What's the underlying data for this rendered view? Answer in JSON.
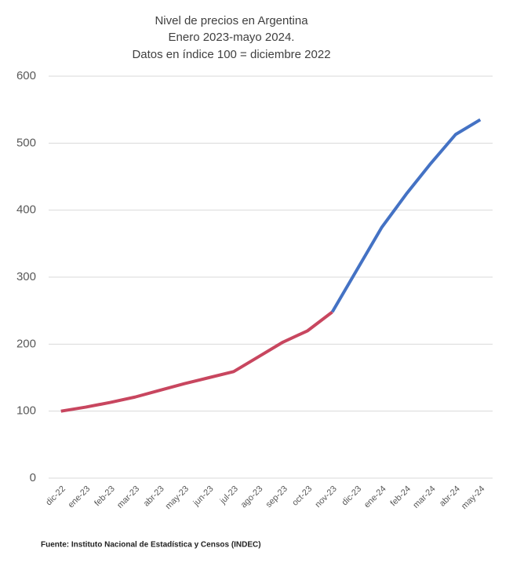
{
  "chart_data": {
    "type": "line",
    "title": [
      "Nivel de precios en Argentina",
      "Enero 2023-mayo 2024.",
      "Datos en índice 100 = diciembre 2022"
    ],
    "categories": [
      "dic-22",
      "ene-23",
      "feb-23",
      "mar-23",
      "abr-23",
      "may-23",
      "jun-23",
      "jul-23",
      "ago-23",
      "sep-23",
      "oct-23",
      "nov-23",
      "dic-23",
      "ene-24",
      "feb-24",
      "mar-24",
      "abr-24",
      "may-24"
    ],
    "series": [
      {
        "color": "#c8465f",
        "values": [
          100,
          106,
          113,
          121,
          131,
          141,
          150,
          159,
          181,
          203,
          220,
          248,
          null,
          null,
          null,
          null,
          null,
          null
        ]
      },
      {
        "color": "#4472c4",
        "values": [
          null,
          null,
          null,
          null,
          null,
          null,
          null,
          null,
          null,
          null,
          null,
          248,
          311,
          374,
          424,
          470,
          513,
          535
        ]
      }
    ],
    "ylim": [
      0,
      600
    ],
    "yticks": [
      0,
      100,
      200,
      300,
      400,
      500,
      600
    ],
    "grid": true,
    "source": "Fuente: Instituto Nacional de Estadística y Censos (INDEC)"
  }
}
